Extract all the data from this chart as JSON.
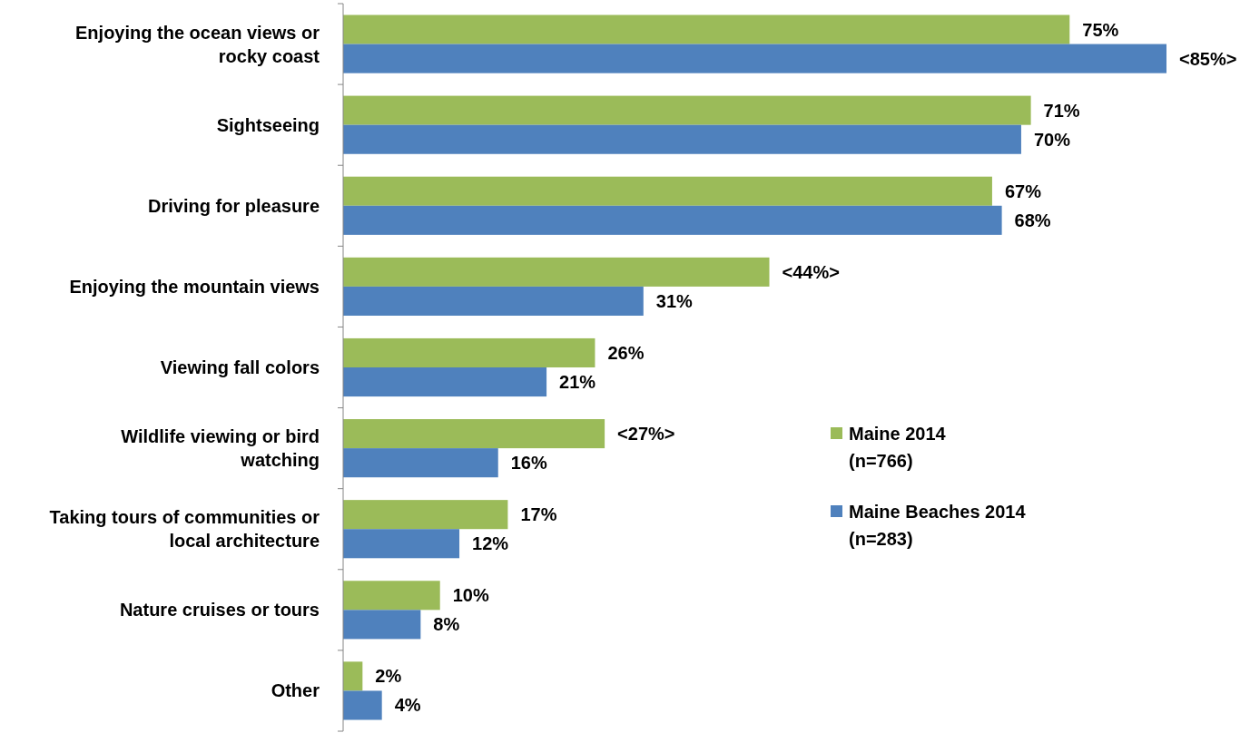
{
  "chart_data": {
    "type": "bar",
    "orientation": "horizontal",
    "categories": [
      "Enjoying the ocean views or rocky coast",
      "Sightseeing",
      "Driving for pleasure",
      "Enjoying the mountain views",
      "Viewing fall colors",
      "Wildlife viewing or bird watching",
      "Taking tours of communities or local architecture",
      "Nature cruises or tours",
      "Other"
    ],
    "series": [
      {
        "name": "Maine 2014 (n=766)",
        "color": "#9bbb59",
        "values": [
          75,
          71,
          67,
          44,
          26,
          27,
          17,
          10,
          2
        ],
        "value_labels": [
          "75%",
          "71%",
          "67%",
          "<44%>",
          "26%",
          "<27%>",
          "17%",
          "10%",
          "2%"
        ]
      },
      {
        "name": "Maine Beaches 2014 (n=283)",
        "color": "#4f81bd",
        "values": [
          85,
          70,
          68,
          31,
          21,
          16,
          12,
          8,
          4
        ],
        "value_labels": [
          "<85%>",
          "70%",
          "68%",
          "31%",
          "21%",
          "16%",
          "12%",
          "8%",
          "4%"
        ]
      }
    ],
    "legend": "right"
  }
}
